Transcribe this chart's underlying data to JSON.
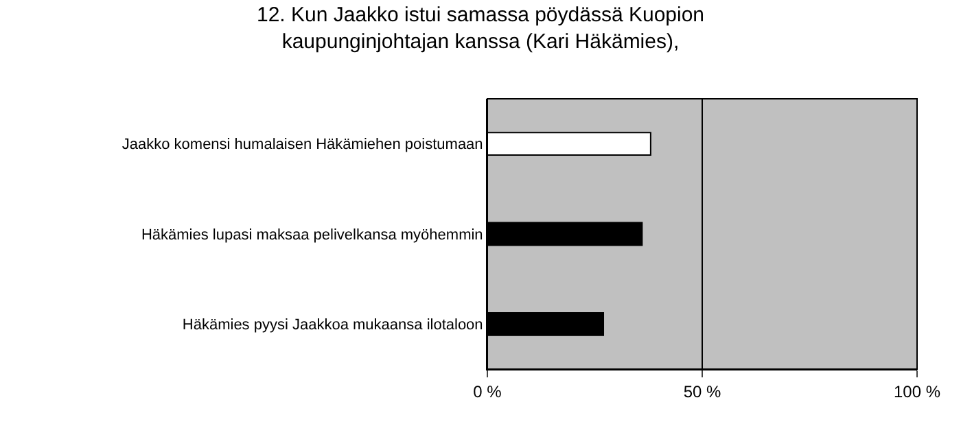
{
  "chart_data": {
    "type": "bar",
    "orientation": "horizontal",
    "title": "12. Kun Jaakko istui samassa pöydässä Kuopion kaupunginjohtajan kanssa (Kari Häkämies),",
    "categories": [
      "Jaakko komensi humalaisen Häkämiehen poistumaan",
      "Häkämies lupasi maksaa pelivelkansa myöhemmin",
      "Häkämies pyysi Jaakkoa mukaansa ilotaloon"
    ],
    "values": [
      38,
      36,
      27
    ],
    "colors": [
      "#ffffff",
      "#000000",
      "#000000"
    ],
    "xlim": [
      0,
      100
    ],
    "xticks": [
      {
        "value": 0,
        "label": "0 %"
      },
      {
        "value": 50,
        "label": "50 %"
      },
      {
        "value": 100,
        "label": "100 %"
      }
    ],
    "grid": "x"
  }
}
